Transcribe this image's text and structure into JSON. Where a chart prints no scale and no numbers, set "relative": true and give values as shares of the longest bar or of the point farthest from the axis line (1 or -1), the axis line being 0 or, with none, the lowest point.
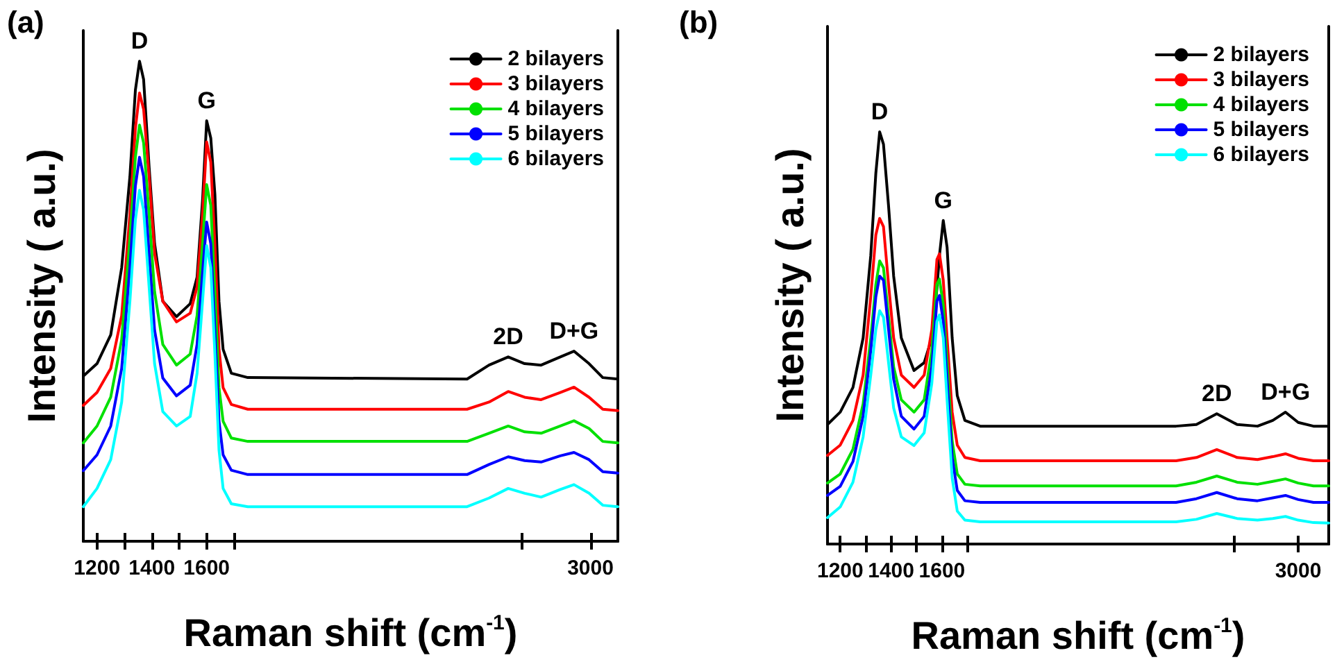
{
  "chart_data": [
    {
      "type": "line",
      "title": "(a)",
      "ylabel": "Intensity ( a.u.)",
      "xlabel": "Raman shift (cm$^{-1}$)",
      "relative": true,
      "tick_labels": "x",
      "legend": "top right",
      "xlim": [
        1150,
        3100
      ],
      "xticks": [
        1200,
        {
          "value": 1300,
          "label": null
        },
        1400,
        {
          "value": 1500,
          "label": null
        },
        1600,
        {
          "value": 1700,
          "label": null
        },
        {
          "value": 2750,
          "label": null
        },
        3000
      ],
      "x": [
        1150,
        1200,
        1250,
        1290,
        1320,
        1340,
        1355,
        1370,
        1390,
        1410,
        1440,
        1490,
        1540,
        1565,
        1585,
        1600,
        1615,
        1630,
        1645,
        1660,
        1690,
        1750,
        2550,
        2630,
        2700,
        2760,
        2820,
        2890,
        2940,
        2995,
        3045,
        3100
      ],
      "annotations": [
        {
          "text": "D",
          "x": 1355,
          "y": 1.0
        },
        {
          "text": "G",
          "x": 1600,
          "y": 0.876
        },
        {
          "text": "2D",
          "x": 2700,
          "y": 0.384
        },
        {
          "text": "D+G",
          "x": 2940,
          "y": 0.396
        }
      ],
      "series": [
        {
          "name": "2 bilayers",
          "color": "#000000",
          "values": [
            0.344,
            0.37,
            0.43,
            0.57,
            0.76,
            0.94,
            1.0,
            0.962,
            0.78,
            0.62,
            0.5,
            0.468,
            0.495,
            0.55,
            0.71,
            0.876,
            0.84,
            0.723,
            0.5,
            0.4,
            0.35,
            0.341,
            0.338,
            0.367,
            0.384,
            0.37,
            0.367,
            0.384,
            0.396,
            0.37,
            0.341,
            0.338
          ]
        },
        {
          "name": "3 bilayers",
          "color": "#ff0000",
          "values": [
            0.283,
            0.31,
            0.36,
            0.47,
            0.68,
            0.86,
            0.934,
            0.9,
            0.76,
            0.6,
            0.5,
            0.457,
            0.475,
            0.53,
            0.68,
            0.832,
            0.79,
            0.62,
            0.4,
            0.32,
            0.285,
            0.275,
            0.275,
            0.29,
            0.312,
            0.3,
            0.295,
            0.31,
            0.321,
            0.3,
            0.275,
            0.272
          ]
        },
        {
          "name": "4 bilayers",
          "color": "#00e000",
          "values": [
            0.205,
            0.24,
            0.3,
            0.42,
            0.63,
            0.8,
            0.867,
            0.83,
            0.68,
            0.52,
            0.41,
            0.367,
            0.39,
            0.47,
            0.62,
            0.743,
            0.7,
            0.52,
            0.32,
            0.25,
            0.215,
            0.208,
            0.208,
            0.225,
            0.24,
            0.228,
            0.225,
            0.24,
            0.251,
            0.235,
            0.208,
            0.205
          ]
        },
        {
          "name": "5 bilayers",
          "color": "#0000ff",
          "values": [
            0.147,
            0.18,
            0.24,
            0.36,
            0.57,
            0.74,
            0.8,
            0.76,
            0.6,
            0.44,
            0.34,
            0.303,
            0.325,
            0.41,
            0.56,
            0.665,
            0.62,
            0.44,
            0.25,
            0.18,
            0.148,
            0.139,
            0.139,
            0.16,
            0.176,
            0.168,
            0.165,
            0.178,
            0.185,
            0.17,
            0.145,
            0.142
          ]
        },
        {
          "name": "6 bilayers",
          "color": "#00ffff",
          "values": [
            0.072,
            0.11,
            0.17,
            0.29,
            0.5,
            0.67,
            0.731,
            0.69,
            0.53,
            0.37,
            0.27,
            0.24,
            0.26,
            0.35,
            0.5,
            0.616,
            0.57,
            0.39,
            0.19,
            0.11,
            0.078,
            0.072,
            0.072,
            0.09,
            0.11,
            0.1,
            0.092,
            0.108,
            0.118,
            0.1,
            0.075,
            0.072
          ]
        }
      ]
    },
    {
      "type": "line",
      "title": "(b)",
      "ylabel": "Intensity ( a.u.)",
      "xlabel": "Raman shift (cm$^{-1}$)",
      "relative": true,
      "tick_labels": "x",
      "legend": "top right",
      "xlim": [
        1150,
        3120
      ],
      "xticks": [
        1200,
        {
          "value": 1300,
          "label": null
        },
        1400,
        {
          "value": 1500,
          "label": null
        },
        1600,
        {
          "value": 1700,
          "label": null
        },
        {
          "value": 2750,
          "label": null
        },
        3000
      ],
      "x": [
        1150,
        1200,
        1250,
        1290,
        1320,
        1340,
        1355,
        1370,
        1390,
        1410,
        1440,
        1490,
        1530,
        1560,
        1580,
        1590,
        1605,
        1620,
        1640,
        1660,
        1690,
        1750,
        2520,
        2600,
        2680,
        2760,
        2840,
        2900,
        2950,
        3000,
        3060,
        3120
      ],
      "annotations": [
        {
          "text": "D",
          "x": 1355,
          "y": 1.0
        },
        {
          "text": "G",
          "x": 1605,
          "y": 0.785
        },
        {
          "text": "2D",
          "x": 2680,
          "y": 0.316
        },
        {
          "text": "D+G",
          "x": 2950,
          "y": 0.32
        }
      ],
      "series": [
        {
          "name": "2 bilayers",
          "color": "#000000",
          "values": [
            0.29,
            0.32,
            0.38,
            0.5,
            0.7,
            0.9,
            1.0,
            0.97,
            0.82,
            0.65,
            0.5,
            0.421,
            0.44,
            0.5,
            0.62,
            0.7,
            0.785,
            0.72,
            0.5,
            0.36,
            0.3,
            0.286,
            0.286,
            0.29,
            0.316,
            0.29,
            0.286,
            0.3,
            0.32,
            0.295,
            0.286,
            0.286
          ]
        },
        {
          "name": "3 bilayers",
          "color": "#ff0000",
          "values": [
            0.215,
            0.24,
            0.3,
            0.41,
            0.6,
            0.75,
            0.79,
            0.77,
            0.63,
            0.5,
            0.41,
            0.38,
            0.41,
            0.52,
            0.69,
            0.704,
            0.64,
            0.5,
            0.32,
            0.24,
            0.21,
            0.202,
            0.202,
            0.21,
            0.229,
            0.21,
            0.205,
            0.212,
            0.219,
            0.208,
            0.202,
            0.202
          ]
        },
        {
          "name": "4 bilayers",
          "color": "#00e000",
          "values": [
            0.148,
            0.17,
            0.23,
            0.34,
            0.5,
            0.63,
            0.687,
            0.67,
            0.55,
            0.43,
            0.35,
            0.32,
            0.35,
            0.47,
            0.63,
            0.643,
            0.58,
            0.44,
            0.25,
            0.17,
            0.145,
            0.141,
            0.141,
            0.15,
            0.165,
            0.15,
            0.145,
            0.152,
            0.158,
            0.148,
            0.141,
            0.141
          ]
        },
        {
          "name": "5 bilayers",
          "color": "#0000ff",
          "values": [
            0.118,
            0.14,
            0.2,
            0.31,
            0.47,
            0.6,
            0.65,
            0.64,
            0.52,
            0.4,
            0.31,
            0.279,
            0.31,
            0.43,
            0.59,
            0.603,
            0.54,
            0.4,
            0.21,
            0.13,
            0.105,
            0.101,
            0.101,
            0.11,
            0.125,
            0.11,
            0.105,
            0.112,
            0.118,
            0.108,
            0.101,
            0.101
          ]
        },
        {
          "name": "6 bilayers",
          "color": "#00ffff",
          "values": [
            0.064,
            0.09,
            0.15,
            0.26,
            0.41,
            0.52,
            0.566,
            0.55,
            0.44,
            0.33,
            0.26,
            0.239,
            0.27,
            0.39,
            0.54,
            0.556,
            0.5,
            0.35,
            0.16,
            0.08,
            0.058,
            0.054,
            0.054,
            0.06,
            0.074,
            0.062,
            0.058,
            0.062,
            0.067,
            0.058,
            0.052,
            0.051
          ]
        }
      ]
    }
  ]
}
